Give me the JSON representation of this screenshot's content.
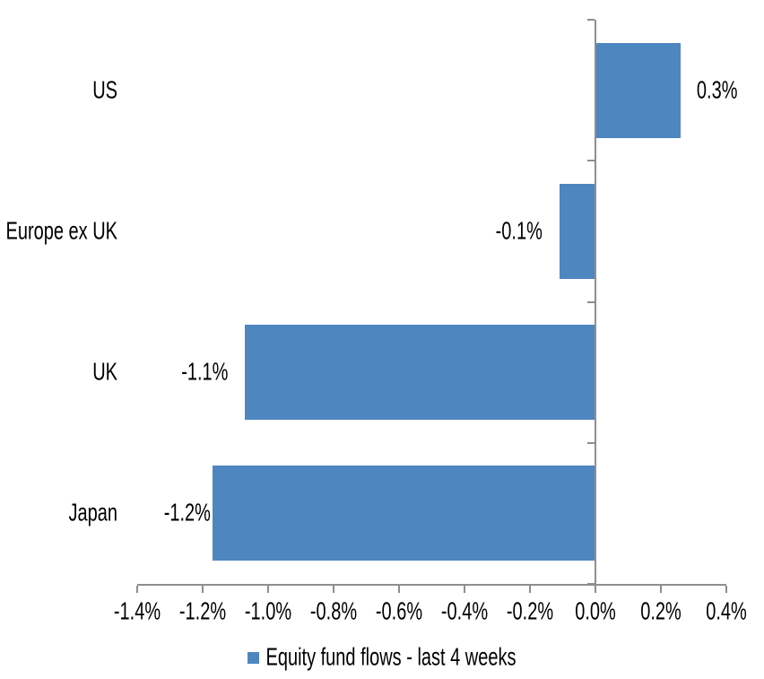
{
  "chart_data": {
    "type": "bar",
    "orientation": "horizontal",
    "title": "",
    "xlabel": "",
    "ylabel": "",
    "categories": [
      "US",
      "Europe ex UK",
      "UK",
      "Japan"
    ],
    "values": [
      0.26,
      -0.11,
      -1.07,
      -1.17
    ],
    "value_labels": [
      "0.3%",
      "-0.1%",
      "-1.1%",
      "-1.2%"
    ],
    "xlim": [
      -1.4,
      0.4
    ],
    "x_ticks": [
      -1.4,
      -1.2,
      -1.0,
      -0.8,
      -0.6,
      -0.4,
      -0.2,
      0.0,
      0.2,
      0.4
    ],
    "x_tick_labels": [
      "-1.4%",
      "-1.2%",
      "-1.0%",
      "-0.8%",
      "-0.6%",
      "-0.4%",
      "-0.2%",
      "0.0%",
      "0.2%",
      "0.4%"
    ],
    "grid": false,
    "legend": {
      "position": "bottom",
      "entries": [
        "Equity fund flows - last 4 weeks"
      ]
    },
    "colors": {
      "bar": "#4E86C0",
      "axis": "#8E8E8E",
      "text": "#000000",
      "background": "#FFFFFF"
    }
  }
}
